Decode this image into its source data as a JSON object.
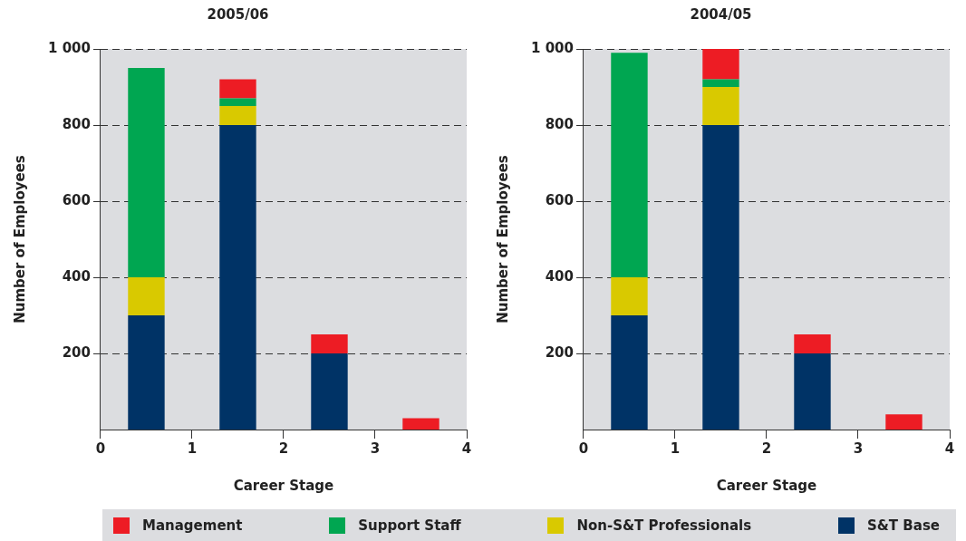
{
  "chart_data": [
    {
      "type": "bar",
      "title": "2005/06",
      "xlabel": "Career Stage",
      "ylabel": "Number of Employees",
      "stacked": true,
      "x": [
        0.5,
        1.5,
        2.5,
        3.5
      ],
      "xlim": [
        0,
        4
      ],
      "xticks": [
        0,
        1,
        2,
        3,
        4
      ],
      "ylim": [
        0,
        1000
      ],
      "yticks": [
        200,
        400,
        600,
        800,
        {
          "value": 1000,
          "label": "1 000"
        }
      ],
      "grid": "y",
      "legend": "bottom",
      "series": [
        {
          "name": "S&T Base",
          "color": "#003366",
          "values": [
            300,
            800,
            200,
            null
          ]
        },
        {
          "name": "Non-S&T Professionals",
          "color": "#d9c900",
          "values": [
            100,
            50,
            null,
            null
          ]
        },
        {
          "name": "Support Staff",
          "color": "#00a651",
          "values": [
            550,
            20,
            null,
            null
          ]
        },
        {
          "name": "Management",
          "color": "#ed1c24",
          "values": [
            null,
            50,
            50,
            30
          ]
        }
      ]
    },
    {
      "type": "bar",
      "title": "2004/05",
      "xlabel": "Career Stage",
      "ylabel": "Number of Employees",
      "stacked": true,
      "x": [
        0.5,
        1.5,
        2.5,
        3.5
      ],
      "xlim": [
        0,
        4
      ],
      "xticks": [
        0,
        1,
        2,
        3,
        4
      ],
      "ylim": [
        0,
        1000
      ],
      "yticks": [
        200,
        400,
        600,
        800,
        {
          "value": 1000,
          "label": "1 000"
        }
      ],
      "grid": "y",
      "legend": "bottom",
      "series": [
        {
          "name": "S&T Base",
          "color": "#003366",
          "values": [
            300,
            800,
            200,
            null
          ]
        },
        {
          "name": "Non-S&T Professionals",
          "color": "#d9c900",
          "values": [
            100,
            100,
            null,
            null
          ]
        },
        {
          "name": "Support Staff",
          "color": "#00a651",
          "values": [
            590,
            20,
            null,
            null
          ]
        },
        {
          "name": "Management",
          "color": "#ed1c24",
          "values": [
            null,
            80,
            50,
            40
          ]
        }
      ]
    }
  ]
}
